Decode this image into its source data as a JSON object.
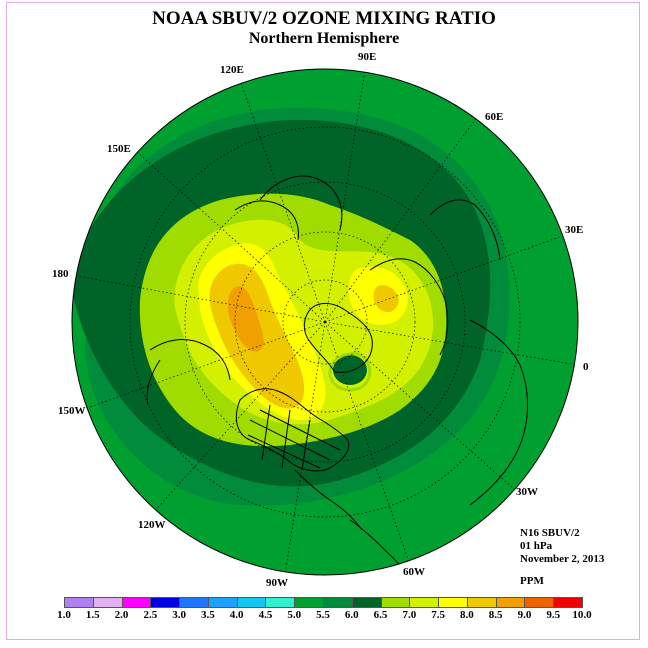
{
  "title": "NOAA SBUV/2 OZONE MIXING RATIO",
  "subtitle": "Northern Hemisphere",
  "longitude_labels": {
    "lon_90e": "90E",
    "lon_120e": "120E",
    "lon_60e": "60E",
    "lon_150e": "150E",
    "lon_30e": "30E",
    "lon_180": "180",
    "lon_0": "0",
    "lon_150w": "150W",
    "lon_30w": "30W",
    "lon_120w": "120W",
    "lon_60w": "60W",
    "lon_90w": "90W"
  },
  "info": {
    "instrument": "N16 SBUV/2",
    "level": "01 hPa",
    "date": "November 2, 2013",
    "units": "PPM"
  },
  "colorbar": {
    "labels": [
      "1.0",
      "1.5",
      "2.0",
      "2.5",
      "3.0",
      "3.5",
      "4.0",
      "4.5",
      "5.0",
      "5.5",
      "6.0",
      "6.5",
      "7.0",
      "7.5",
      "8.0",
      "8.5",
      "9.0",
      "9.5",
      "10.0"
    ],
    "colors": [
      "#b080f0",
      "#e0b0f0",
      "#ff00ff",
      "#0000e0",
      "#1e78ff",
      "#1ea0ff",
      "#10c8f0",
      "#30f0d0",
      "#00a030",
      "#008c3a",
      "#006428",
      "#a0dc00",
      "#d2f000",
      "#ffff00",
      "#f0c800",
      "#f0a000",
      "#f06400",
      "#f00000",
      "#8c5a3c"
    ]
  },
  "map_data": {
    "projection": "north-polar-stereographic",
    "field": "ozone mixing ratio",
    "colors": {
      "outer": "#00a030",
      "band_5_5": "#008c3a",
      "band_6_0": "#006428",
      "band_6_5": "#a0dc00",
      "band_7_0": "#d2f000",
      "band_7_5": "#ffff00",
      "band_8_0": "#f0c800",
      "band_8_5": "#f0a000",
      "low_spot": "#006428"
    }
  }
}
